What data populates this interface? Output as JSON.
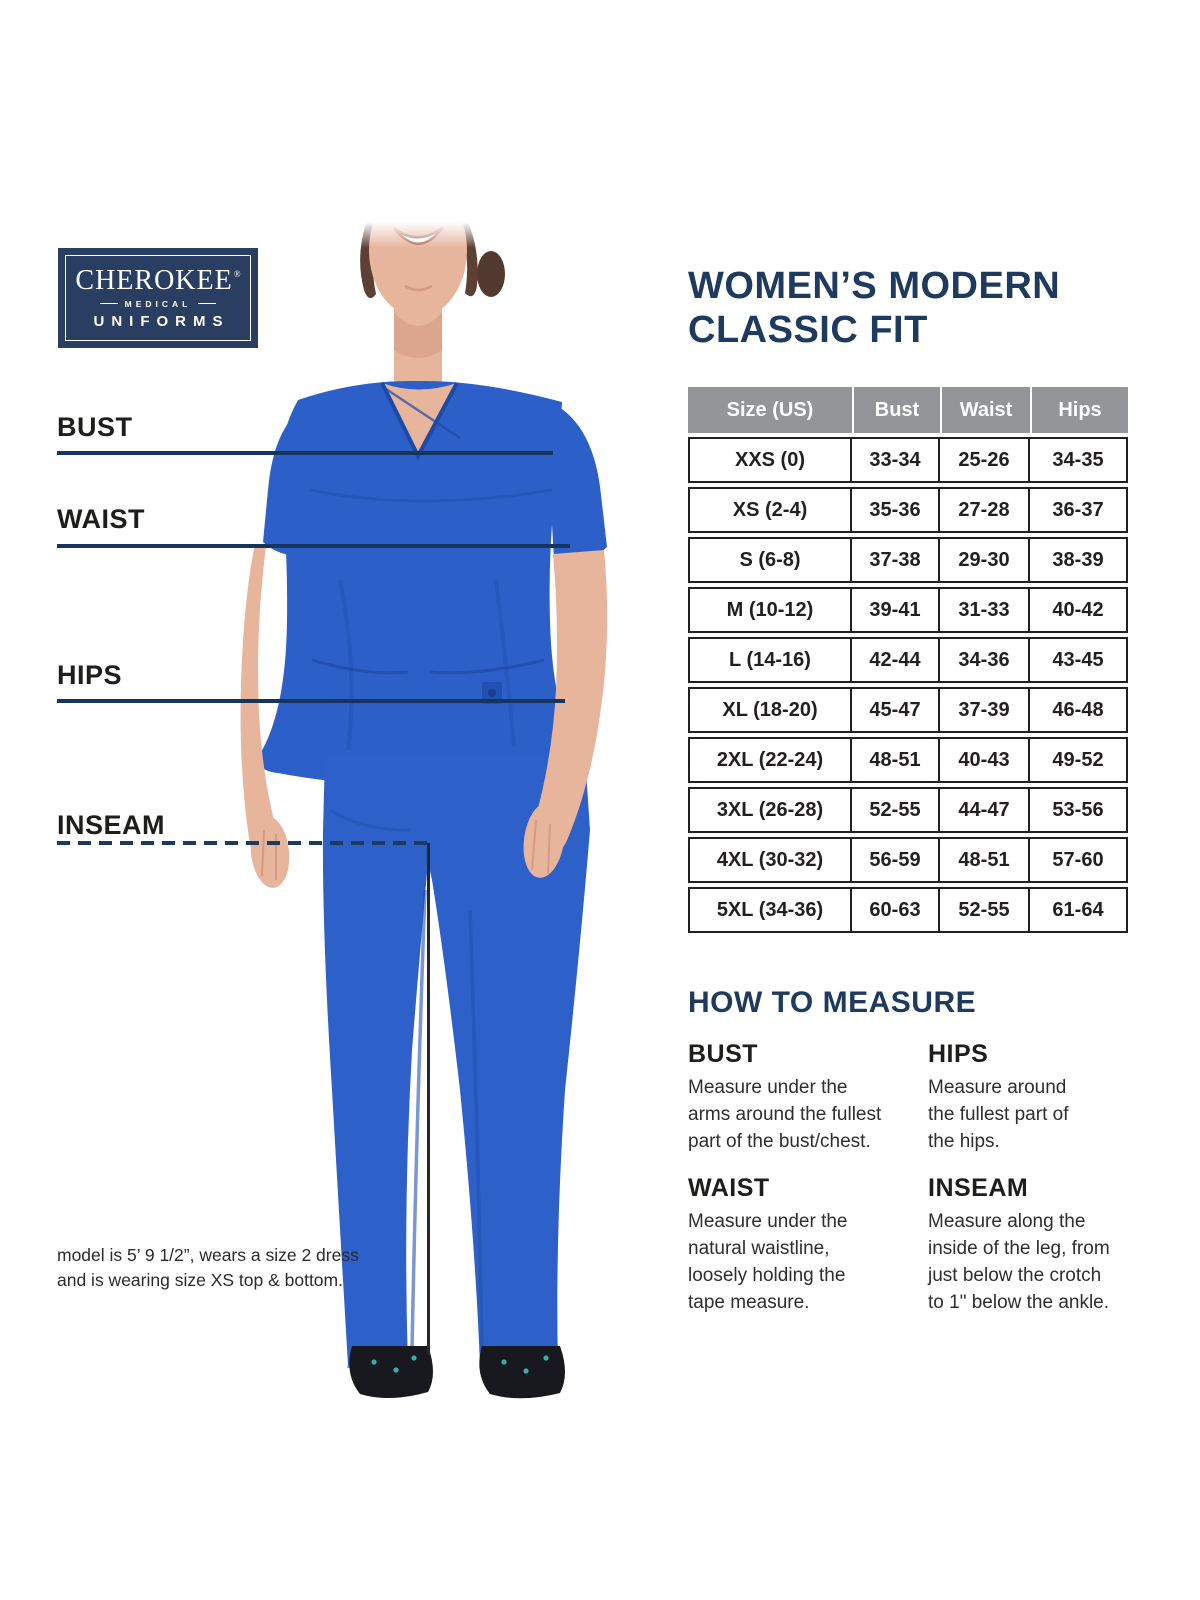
{
  "brand": {
    "name": "CHEROKEE",
    "registered": "®",
    "division": "MEDICAL",
    "product_line": "UNIFORMS"
  },
  "page_title": {
    "line1": "WOMEN’S MODERN",
    "line2": "CLASSIC FIT"
  },
  "measurement_labels": [
    {
      "label": "BUST"
    },
    {
      "label": "WAIST"
    },
    {
      "label": "HIPS"
    },
    {
      "label": "INSEAM"
    }
  ],
  "model_note": {
    "line1": "model is 5’ 9 1/2”, wears a size 2 dress",
    "line2": "and is wearing size XS top & bottom."
  },
  "size_table": {
    "columns": [
      "Size (US)",
      "Bust",
      "Waist",
      "Hips"
    ],
    "rows": [
      [
        "XXS (0)",
        "33-34",
        "25-26",
        "34-35"
      ],
      [
        "XS (2-4)",
        "35-36",
        "27-28",
        "36-37"
      ],
      [
        "S (6-8)",
        "37-38",
        "29-30",
        "38-39"
      ],
      [
        "M (10-12)",
        "39-41",
        "31-33",
        "40-42"
      ],
      [
        "L (14-16)",
        "42-44",
        "34-36",
        "43-45"
      ],
      [
        "XL (18-20)",
        "45-47",
        "37-39",
        "46-48"
      ],
      [
        "2XL (22-24)",
        "48-51",
        "40-43",
        "49-52"
      ],
      [
        "3XL (26-28)",
        "52-55",
        "44-47",
        "53-56"
      ],
      [
        "4XL (30-32)",
        "56-59",
        "48-51",
        "57-60"
      ],
      [
        "5XL (34-36)",
        "60-63",
        "52-55",
        "61-64"
      ]
    ]
  },
  "how_to_measure": {
    "title": "HOW TO MEASURE",
    "sections": [
      {
        "title": "BUST",
        "body": "Measure under the\narms around the fullest\npart of the bust/chest."
      },
      {
        "title": "WAIST",
        "body": "Measure under the\nnatural waistline,\nloosely holding the\ntape measure."
      },
      {
        "title": "HIPS",
        "body": "Measure around\nthe fullest part of\nthe hips."
      },
      {
        "title": "INSEAM",
        "body": "Measure along the\ninside of the leg, from\njust below the crotch\nto 1\" below the ankle."
      }
    ]
  },
  "colors": {
    "navy": "#1e3a5e",
    "logo_navy": "#2a3e61",
    "table_header_gray": "#939598",
    "table_border": "#231f20",
    "measure_line_navy": "#16355e",
    "scrub_blue": "#2c5fc8"
  }
}
